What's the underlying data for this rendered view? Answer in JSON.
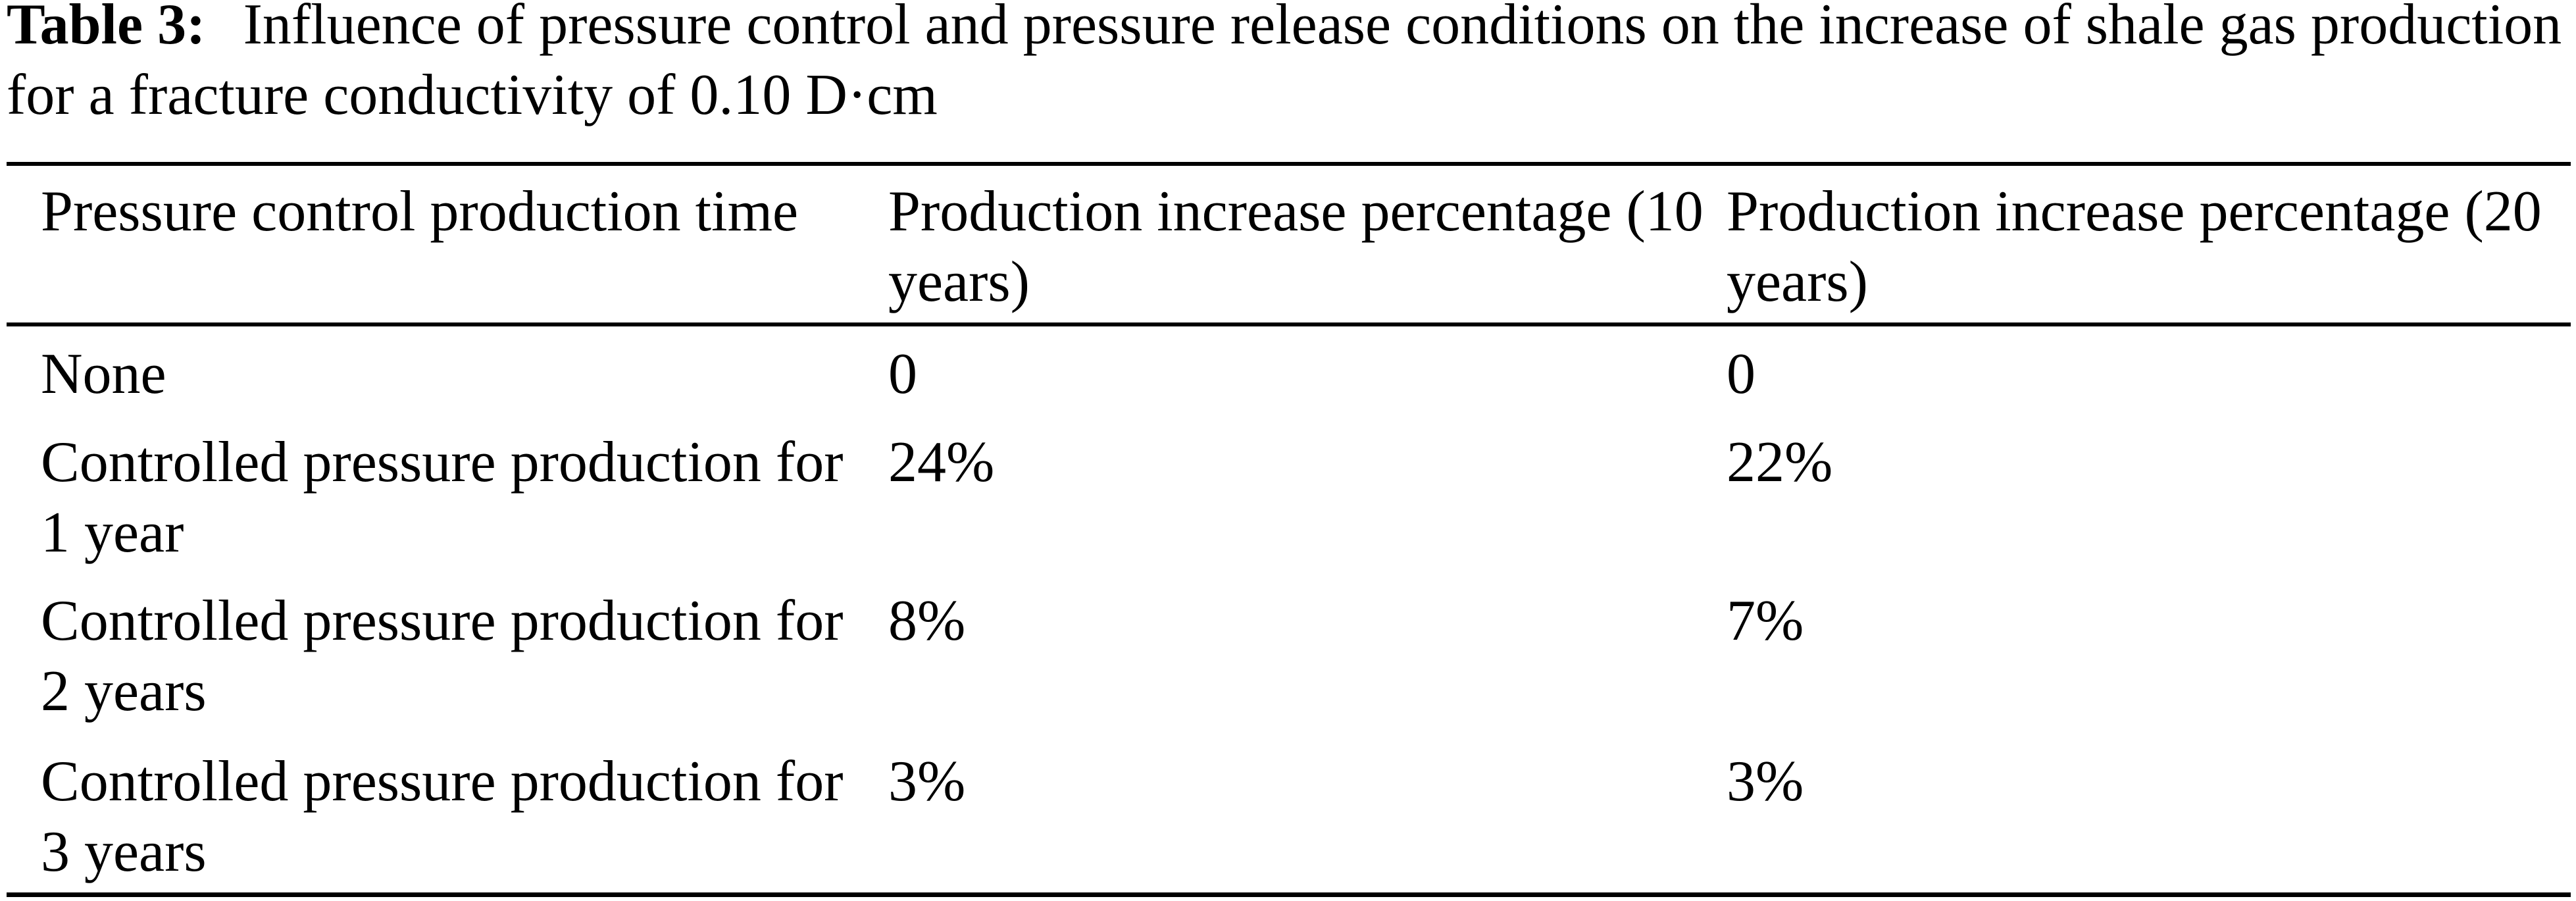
{
  "page": {
    "background_color": "#ffffff",
    "text_color": "#000000"
  },
  "caption": {
    "label": "Table 3:",
    "line1": "Influence of pressure control and pressure release conditions on the increase of shale gas production",
    "line2": "for a fracture conductivity of 0.10 D·cm"
  },
  "table": {
    "headers": [
      "Pressure control production time",
      "Production increase percentage (10 years)",
      "Production increase percentage (20 years)"
    ],
    "rows": [
      {
        "condition": "None",
        "pct_10yr": "0",
        "pct_20yr": "0"
      },
      {
        "condition": "Controlled pressure production for 1 year",
        "pct_10yr": "24%",
        "pct_20yr": "22%"
      },
      {
        "condition": "Controlled pressure production for 2 years",
        "pct_10yr": "8%",
        "pct_20yr": "7%"
      },
      {
        "condition": "Controlled pressure production for 3 years",
        "pct_10yr": "3%",
        "pct_20yr": "3%"
      }
    ]
  }
}
